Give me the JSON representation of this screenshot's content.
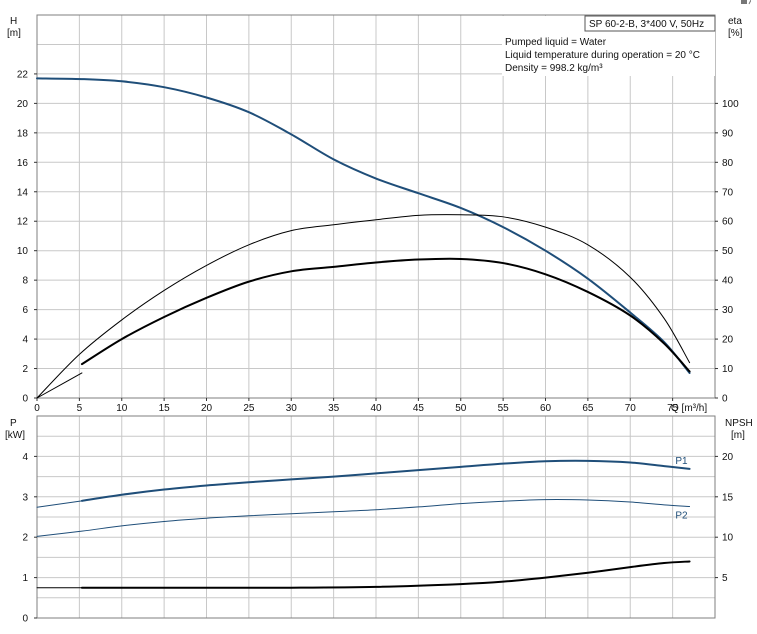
{
  "colors": {
    "blue": "#1f4e79",
    "black": "#000000",
    "grid": "#c8c8c8",
    "frame": "#7f7f7f"
  },
  "header": {
    "title": "SP 60-2-B, 3*400 V, 50Hz",
    "info_lines": [
      "Pumped liquid = Water",
      "Liquid temperature during operation = 20 °C",
      "Density = 998.2 kg/m³"
    ]
  },
  "top_chart": {
    "left_axis_label": "H",
    "left_axis_unit": "[m]",
    "right_axis_label": "eta",
    "right_axis_unit": "[%]",
    "x_axis_label": "Q [m³/h]"
  },
  "bottom_chart": {
    "left_axis_label": "P",
    "left_axis_unit": "[kW]",
    "right_axis_label": "NPSH",
    "right_axis_unit": "[m]"
  },
  "corner_icon": "window-control-icon",
  "chart_data": [
    {
      "type": "line",
      "title": "SP 60-2-B, 3*400 V, 50Hz",
      "xlabel": "Q [m³/h]",
      "ylabel": "H [m]",
      "y2label": "eta [%]",
      "xlim": [
        0,
        80
      ],
      "ylim": [
        0,
        26
      ],
      "y2lim": [
        0,
        130
      ],
      "grid": true,
      "x_ticks": [
        0,
        5,
        10,
        15,
        20,
        25,
        30,
        35,
        40,
        45,
        50,
        55,
        60,
        65,
        70,
        75
      ],
      "y_ticks": [
        0,
        2,
        4,
        6,
        8,
        10,
        12,
        14,
        16,
        18,
        20,
        22
      ],
      "y2_ticks": [
        0,
        10,
        20,
        30,
        40,
        50,
        60,
        70,
        80,
        90,
        100
      ],
      "series": [
        {
          "axis": "left",
          "color": "#1f4e79",
          "width": 2,
          "x": [
            0,
            5.3,
            10,
            15,
            20,
            25,
            30,
            35,
            40,
            45,
            50,
            55,
            60,
            65,
            70,
            74,
            77
          ],
          "y": [
            21.7,
            21.65,
            21.5,
            21.1,
            20.4,
            19.4,
            17.9,
            16.2,
            14.9,
            13.9,
            12.9,
            11.6,
            10.0,
            8.1,
            5.8,
            3.8,
            1.7
          ]
        },
        {
          "axis": "left",
          "color": "#1f4e79",
          "width": 1,
          "x": [
            0,
            5.3
          ],
          "y": [
            21.7,
            21.65
          ]
        },
        {
          "axis": "right",
          "color": "#000000",
          "width": 1,
          "x": [
            0,
            5,
            10,
            15,
            20,
            25,
            30,
            35,
            40,
            45,
            50,
            55,
            60,
            65,
            70,
            74,
            77
          ],
          "y": [
            0,
            14.8,
            26.5,
            36.5,
            45,
            52,
            56.8,
            58.8,
            60.5,
            62,
            62.2,
            61.5,
            58,
            52,
            41,
            27,
            12
          ]
        },
        {
          "axis": "right",
          "color": "#000000",
          "width": 2,
          "x": [
            5.3,
            10,
            15,
            20,
            25,
            30,
            35,
            40,
            45,
            50,
            55,
            60,
            65,
            70,
            74,
            77
          ],
          "y": [
            11.5,
            20,
            27.5,
            34,
            39.5,
            43,
            44.5,
            46,
            47,
            47.2,
            45.8,
            42,
            36,
            28,
            18.5,
            9
          ]
        },
        {
          "axis": "left",
          "color": "#000000",
          "width": 1,
          "x": [
            0,
            5.3
          ],
          "y": [
            0,
            1.7
          ]
        }
      ]
    },
    {
      "type": "line",
      "xlabel": "",
      "ylabel": "P [kW]",
      "y2label": "NPSH [m]",
      "xlim": [
        0,
        80
      ],
      "ylim": [
        0,
        5
      ],
      "y2lim": [
        0,
        25
      ],
      "grid": true,
      "y_ticks": [
        0,
        1,
        2,
        3,
        4
      ],
      "y2_ticks": [
        5,
        10,
        15,
        20
      ],
      "series": [
        {
          "name": "P1",
          "axis": "left",
          "color": "#1f4e79",
          "width": 2,
          "x": [
            5.3,
            10,
            15,
            20,
            25,
            30,
            35,
            40,
            45,
            50,
            55,
            60,
            65,
            70,
            74,
            77
          ],
          "y": [
            2.9,
            3.05,
            3.18,
            3.28,
            3.36,
            3.43,
            3.5,
            3.58,
            3.66,
            3.74,
            3.82,
            3.88,
            3.89,
            3.85,
            3.76,
            3.69
          ]
        },
        {
          "axis": "left",
          "color": "#1f4e79",
          "width": 1,
          "x": [
            0,
            5.3
          ],
          "y": [
            2.74,
            2.9
          ]
        },
        {
          "name": "P2",
          "axis": "left",
          "color": "#1f4e79",
          "width": 1,
          "x": [
            0,
            5.3,
            10,
            15,
            20,
            25,
            30,
            35,
            40,
            45,
            50,
            55,
            60,
            65,
            70,
            74,
            77
          ],
          "y": [
            2.02,
            2.15,
            2.28,
            2.39,
            2.47,
            2.53,
            2.58,
            2.63,
            2.68,
            2.75,
            2.83,
            2.89,
            2.93,
            2.92,
            2.87,
            2.8,
            2.76
          ]
        },
        {
          "axis": "right",
          "color": "#000000",
          "width": 2,
          "x": [
            5.3,
            10,
            20,
            30,
            40,
            50,
            55,
            60,
            65,
            70,
            74,
            77
          ],
          "y": [
            3.75,
            3.75,
            3.75,
            3.75,
            3.85,
            4.2,
            4.5,
            5.0,
            5.6,
            6.3,
            6.8,
            7.0
          ]
        },
        {
          "axis": "right",
          "color": "#000000",
          "width": 1,
          "x": [
            0,
            5.3
          ],
          "y": [
            3.75,
            3.75
          ]
        }
      ]
    }
  ]
}
